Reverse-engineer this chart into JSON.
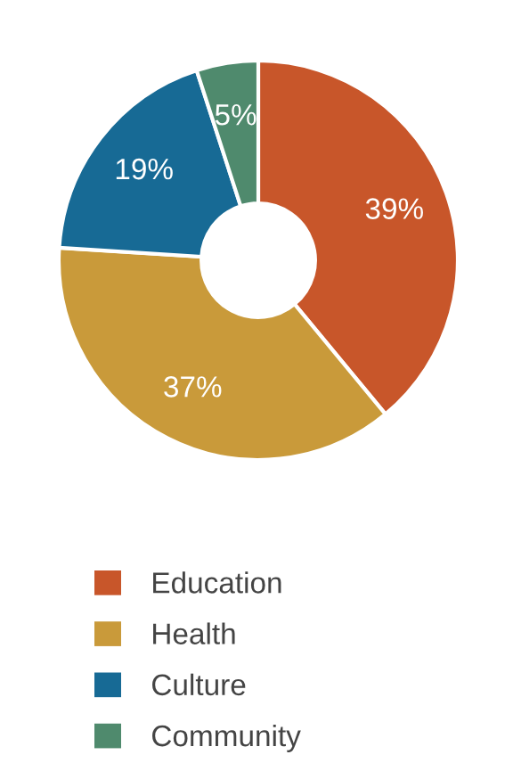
{
  "chart_data": {
    "type": "donut",
    "categories": [
      "Education",
      "Health",
      "Culture",
      "Community"
    ],
    "values": [
      39,
      37,
      19,
      5
    ],
    "colors": [
      "#c8562a",
      "#c99a3a",
      "#176a95",
      "#4f8a6d"
    ],
    "value_labels": [
      "39%",
      "37%",
      "19%",
      "5%"
    ],
    "legend": "bottom"
  }
}
